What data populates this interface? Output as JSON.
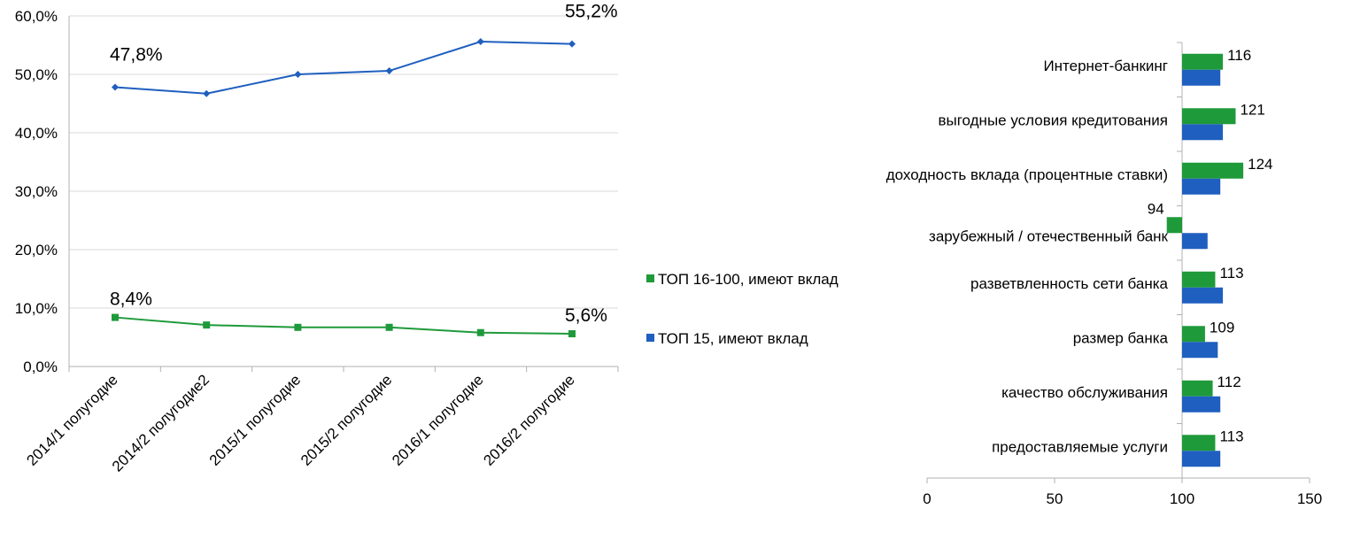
{
  "chart_data": [
    {
      "type": "line",
      "title": "",
      "xlabel": "",
      "ylabel": "",
      "ylim": [
        0,
        60
      ],
      "y_ticks": [
        "0,0%",
        "10,0%",
        "20,0%",
        "30,0%",
        "40,0%",
        "50,0%",
        "60,0%"
      ],
      "categories": [
        "2014/1 полугодие",
        "2014/2 полугодие2",
        "2015/1 полугодие",
        "2015/2 полугодие",
        "2016/1 полугодие",
        "2016/2 полугодие"
      ],
      "grid": true,
      "series": [
        {
          "values": [
            47.8,
            46.7,
            50.0,
            50.6,
            55.6,
            55.2
          ],
          "color": "#1f5fbf",
          "marker": "diamond",
          "labels": [
            {
              "index": 0,
              "text": "47,8%"
            },
            {
              "index": 5,
              "text": "55,2%"
            }
          ]
        },
        {
          "values": [
            8.4,
            7.1,
            6.7,
            6.7,
            5.8,
            5.6
          ],
          "color": "#1f9a3a",
          "marker": "square",
          "labels": [
            {
              "index": 0,
              "text": "8,4%"
            },
            {
              "index": 5,
              "text": "5,6%"
            }
          ]
        }
      ]
    },
    {
      "type": "bar",
      "orientation": "horizontal",
      "title": "",
      "xlabel": "",
      "ylabel": "",
      "xlim": [
        0,
        150
      ],
      "x_ticks": [
        "0",
        "50",
        "100",
        "150"
      ],
      "categories": [
        "Интернет-банкинг",
        "выгодные условия кредитования",
        "доходность вклада (процентные ставки)",
        "зарубежный / отечественный банк",
        "разветвленность сети банка",
        "размер банка",
        "качество обслуживания",
        "предоставляемые услуги"
      ],
      "legend_position": "left",
      "series": [
        {
          "name": "ТОП 16-100, имеют вклад",
          "color": "#1f9a3a",
          "values": [
            116,
            121,
            124,
            94,
            113,
            109,
            112,
            113
          ],
          "labels": [
            "116",
            "121",
            "124",
            "94",
            "113",
            "109",
            "112",
            "113"
          ]
        },
        {
          "name": "ТОП 15, имеют вклад",
          "color": "#1f5fbf",
          "values": [
            115,
            116,
            115,
            110,
            116,
            114,
            115,
            115
          ]
        }
      ]
    }
  ]
}
